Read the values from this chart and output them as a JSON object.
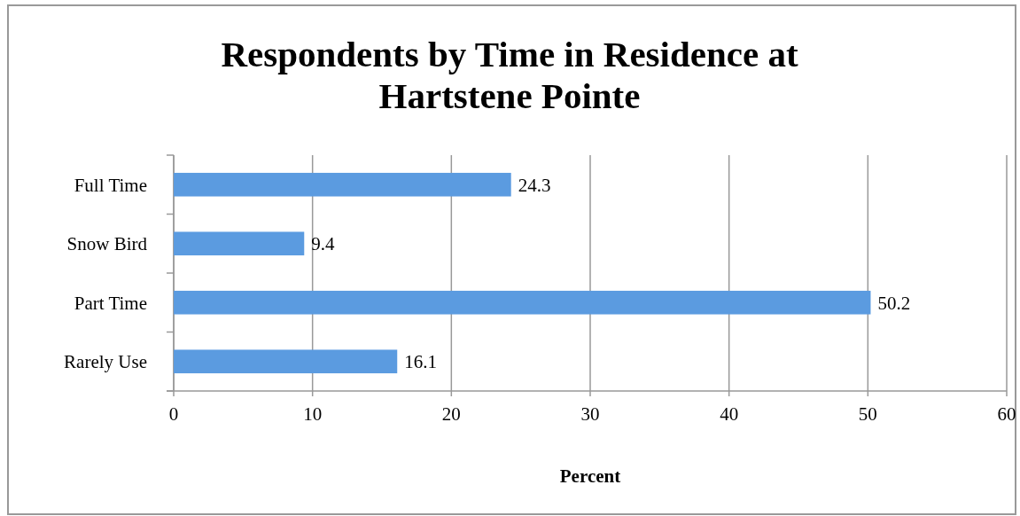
{
  "chart_data": {
    "type": "bar",
    "orientation": "horizontal",
    "title": "Respondents by Time in Residence at Hartstene Pointe",
    "xlabel": "Percent",
    "categories": [
      "Full Time",
      "Snow Bird",
      "Part Time",
      "Rarely Use"
    ],
    "values": [
      24.3,
      9.4,
      50.2,
      16.1
    ],
    "color": "#5b9be0",
    "xlim": [
      0,
      60
    ],
    "xticks": [
      0,
      10,
      20,
      30,
      40,
      50,
      60
    ],
    "grid": "x",
    "data_labels": true
  }
}
